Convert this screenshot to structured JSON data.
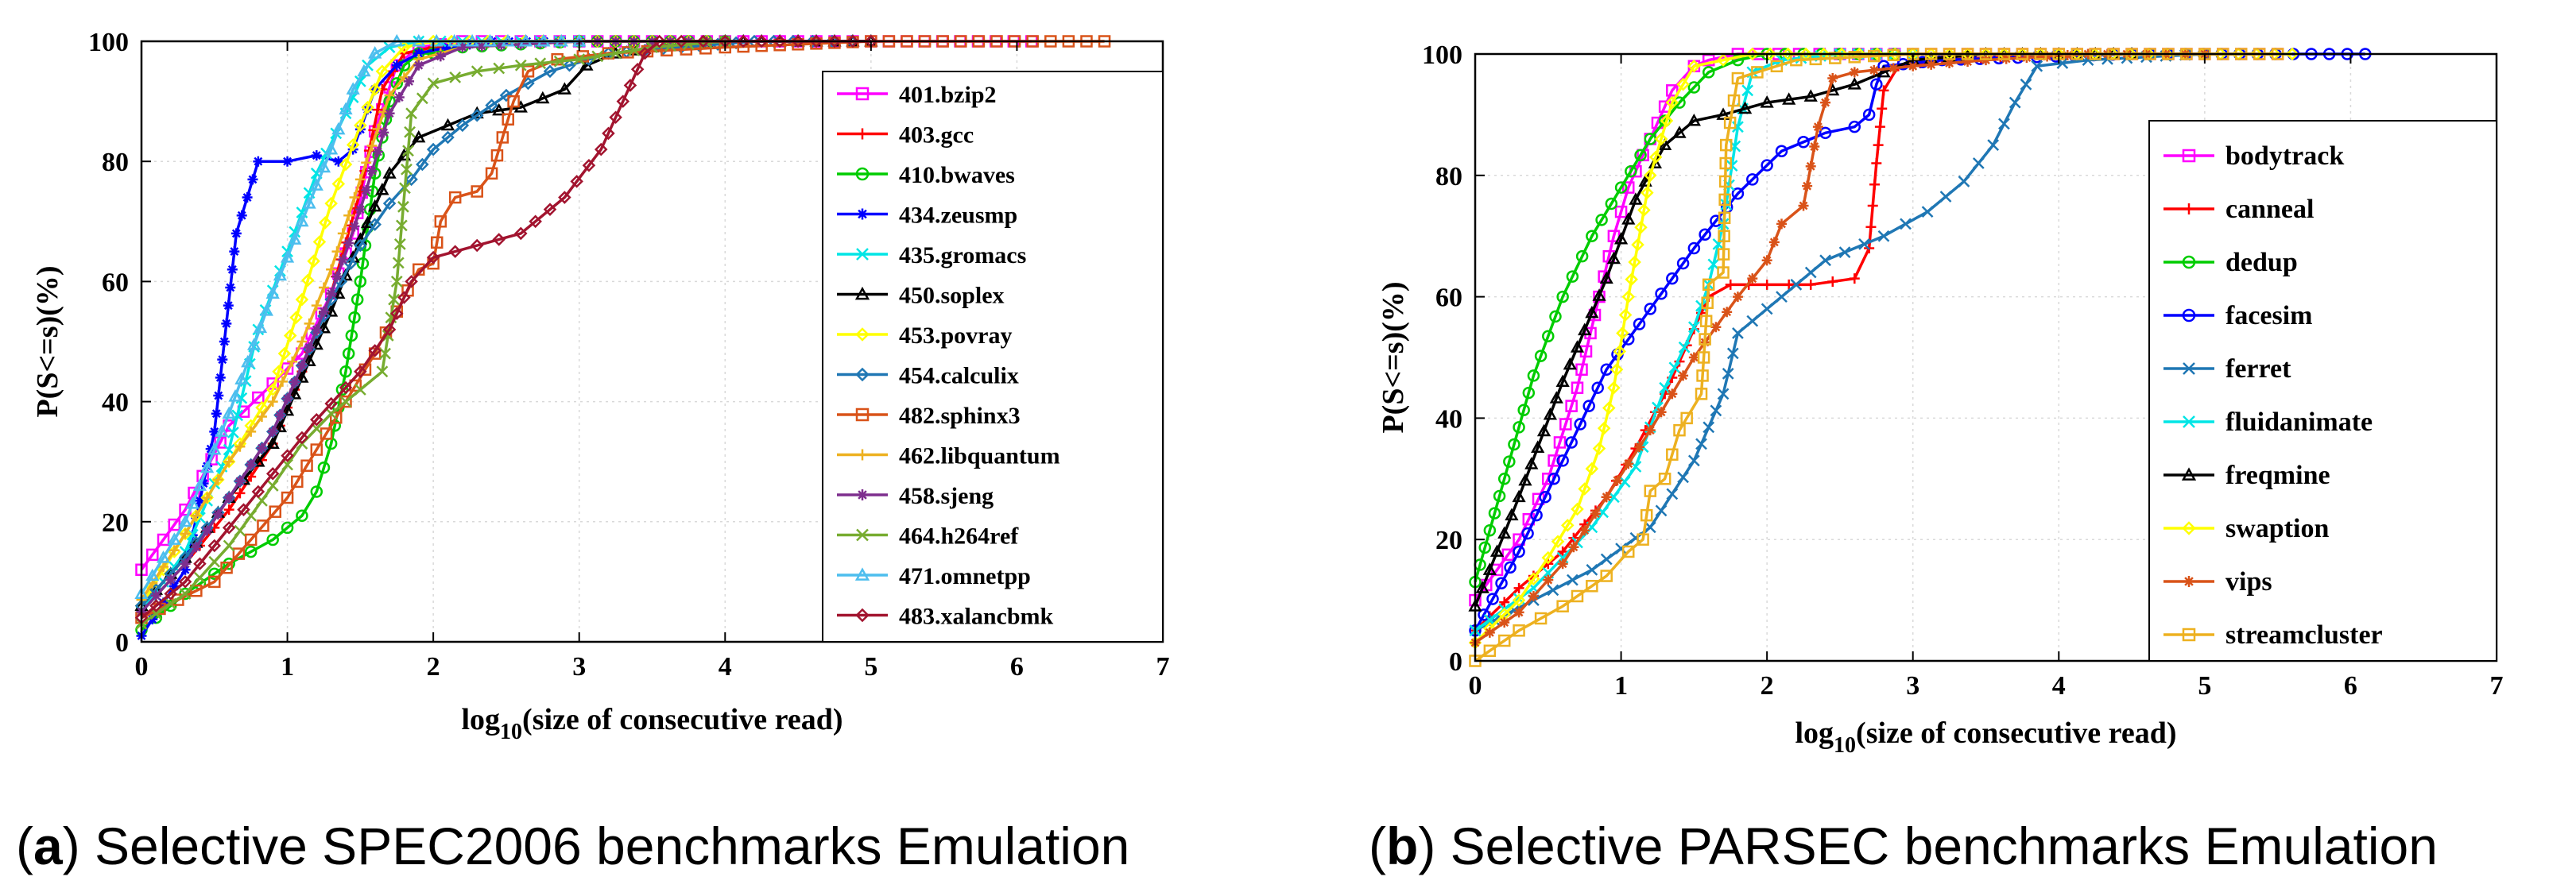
{
  "chart_data": [
    {
      "type": "line",
      "id": "a",
      "caption_label": "a",
      "caption_text": "Selective SPEC2006 benchmarks Emulation",
      "xlabel_base": "log",
      "xlabel_sub": "10",
      "xlabel_rest": "(size of consecutive read)",
      "ylabel": "P(S<=s)(%)",
      "xlim": [
        0,
        7
      ],
      "ylim": [
        0,
        100
      ],
      "xticks": [
        0,
        1,
        2,
        3,
        4,
        5,
        6,
        7
      ],
      "yticks": [
        0,
        20,
        40,
        60,
        80,
        100
      ],
      "grid": true,
      "legend_position": "right",
      "series": [
        {
          "name": "401.bzip2",
          "color": "#ff00ff",
          "marker": "square",
          "x": [
            0,
            0.3,
            0.6,
            0.9,
            1.1,
            1.3,
            1.45,
            1.6,
            1.75,
            1.9,
            2.2,
            3,
            4,
            5,
            6.1
          ],
          "y": [
            12,
            22,
            36,
            43,
            48,
            58,
            68,
            85,
            96,
            99,
            100,
            100,
            100,
            100,
            100
          ]
        },
        {
          "name": "403.gcc",
          "color": "#ff0000",
          "marker": "plus",
          "x": [
            0,
            0.3,
            0.6,
            0.9,
            1.1,
            1.3,
            1.5,
            1.65,
            1.8,
            2,
            2.5,
            3,
            4
          ],
          "y": [
            5,
            13,
            22,
            33,
            45,
            58,
            75,
            92,
            98,
            99,
            100,
            100,
            100
          ]
        },
        {
          "name": "410.bwaves",
          "color": "#00cc00",
          "marker": "circle",
          "x": [
            0,
            0.3,
            0.6,
            0.9,
            1,
            1.1,
            1.2,
            1.3,
            1.4,
            1.5,
            1.6,
            1.7,
            1.8,
            1.9,
            2,
            2.2,
            3,
            4
          ],
          "y": [
            2,
            8,
            13,
            17,
            19,
            21,
            25,
            33,
            45,
            60,
            78,
            90,
            96,
            98,
            98,
            99,
            100,
            100
          ]
        },
        {
          "name": "434.zeusmp",
          "color": "#0000ff",
          "marker": "star",
          "x": [
            0,
            0.3,
            0.5,
            0.65,
            0.8,
            1,
            1.2,
            1.35,
            1.45,
            1.6,
            1.75,
            1.9,
            2.1,
            2.4,
            3,
            4
          ],
          "y": [
            1,
            12,
            35,
            68,
            80,
            80,
            81,
            80,
            82,
            92,
            96,
            98,
            99,
            100,
            100,
            100
          ]
        },
        {
          "name": "435.gromacs",
          "color": "#00e5e5",
          "marker": "cross",
          "x": [
            0,
            0.3,
            0.6,
            0.8,
            1,
            1.2,
            1.4,
            1.55,
            1.7,
            1.9,
            2.2,
            3
          ],
          "y": [
            5,
            15,
            32,
            52,
            65,
            78,
            88,
            96,
            99,
            100,
            100,
            100
          ]
        },
        {
          "name": "450.soplex",
          "color": "#000000",
          "marker": "triangle",
          "x": [
            0,
            0.3,
            0.6,
            0.9,
            1.1,
            1.3,
            1.5,
            1.7,
            1.9,
            2.1,
            2.3,
            2.6,
            2.9,
            3.05,
            3.25,
            3.5,
            4,
            5
          ],
          "y": [
            6,
            14,
            24,
            33,
            44,
            55,
            67,
            78,
            84,
            86,
            88,
            89,
            92,
            96,
            98,
            99,
            100,
            100
          ]
        },
        {
          "name": "453.povray",
          "color": "#ffff00",
          "marker": "diamond",
          "x": [
            0,
            0.3,
            0.6,
            0.9,
            1.1,
            1.3,
            1.5,
            1.65,
            1.8,
            2,
            3,
            4
          ],
          "y": [
            6,
            18,
            30,
            42,
            57,
            73,
            86,
            95,
            99,
            100,
            100,
            100
          ]
        },
        {
          "name": "454.calculix",
          "color": "#1f77b4",
          "marker": "diamond",
          "x": [
            0,
            0.3,
            0.6,
            0.9,
            1.1,
            1.3,
            1.5,
            1.7,
            1.85,
            2,
            2.2,
            2.5,
            2.8,
            3.2,
            3.7,
            4.2,
            5
          ],
          "y": [
            6,
            14,
            24,
            35,
            46,
            57,
            66,
            73,
            77,
            82,
            86,
            91,
            95,
            98,
            99,
            100,
            100
          ]
        },
        {
          "name": "482.sphinx3",
          "color": "#d95319",
          "marker": "square",
          "x": [
            0,
            0.5,
            1,
            1.4,
            1.6,
            1.75,
            1.9,
            2,
            2.05,
            2.15,
            2.3,
            2.4,
            2.55,
            2.65,
            2.85,
            3.2,
            4,
            5,
            6.6
          ],
          "y": [
            4,
            10,
            24,
            40,
            48,
            55,
            62,
            63,
            70,
            74,
            75,
            78,
            90,
            95,
            97,
            98,
            99,
            100,
            100
          ]
        },
        {
          "name": "462.libquantum",
          "color": "#edb120",
          "marker": "plus",
          "x": [
            0,
            0.3,
            0.6,
            0.9,
            1.1,
            1.3,
            1.5,
            1.7,
            1.9,
            2.2,
            3,
            4
          ],
          "y": [
            7,
            18,
            30,
            40,
            50,
            62,
            77,
            91,
            97,
            99,
            100,
            100
          ]
        },
        {
          "name": "458.sjeng",
          "color": "#7e2f8e",
          "marker": "star",
          "x": [
            0,
            0.3,
            0.6,
            0.9,
            1.1,
            1.3,
            1.5,
            1.7,
            1.9,
            2.2,
            3,
            4
          ],
          "y": [
            5,
            13,
            24,
            35,
            46,
            58,
            72,
            88,
            96,
            99,
            100,
            100
          ]
        },
        {
          "name": "464.h264ref",
          "color": "#77ac30",
          "marker": "cross",
          "x": [
            0,
            0.3,
            0.6,
            0.9,
            1.1,
            1.3,
            1.5,
            1.65,
            1.75,
            1.85,
            2,
            2.3,
            2.6,
            3,
            3.5,
            4
          ],
          "y": [
            3,
            8,
            16,
            26,
            33,
            38,
            42,
            45,
            60,
            88,
            93,
            95,
            96,
            97,
            99,
            100
          ]
        },
        {
          "name": "471.omnetpp",
          "color": "#4dbeee",
          "marker": "triangle",
          "x": [
            0,
            0.3,
            0.6,
            0.9,
            1.1,
            1.3,
            1.45,
            1.6,
            1.75,
            1.9,
            3
          ],
          "y": [
            8,
            20,
            38,
            58,
            70,
            82,
            92,
            98,
            100,
            100,
            100
          ]
        },
        {
          "name": "483.xalancbmk",
          "color": "#a2142f",
          "marker": "diamond",
          "x": [
            0,
            0.3,
            0.6,
            0.9,
            1.2,
            1.5,
            1.7,
            1.85,
            2,
            2.3,
            2.6,
            2.9,
            3.15,
            3.3,
            3.45,
            3.55,
            4,
            5
          ],
          "y": [
            4,
            10,
            19,
            28,
            37,
            45,
            52,
            60,
            64,
            66,
            68,
            74,
            82,
            90,
            98,
            100,
            100,
            100
          ]
        }
      ]
    },
    {
      "type": "line",
      "id": "b",
      "caption_label": "b",
      "caption_text": "Selective PARSEC benchmarks Emulation",
      "xlabel_base": "log",
      "xlabel_sub": "10",
      "xlabel_rest": "(size of consecutive read)",
      "ylabel": "P(S<=s)(%)",
      "xlim": [
        0,
        7
      ],
      "ylim": [
        0,
        100
      ],
      "xticks": [
        0,
        1,
        2,
        3,
        4,
        5,
        6,
        7
      ],
      "yticks": [
        0,
        20,
        40,
        60,
        80,
        100
      ],
      "grid": true,
      "legend_position": "right",
      "series": [
        {
          "name": "bodytrack",
          "color": "#ff00ff",
          "marker": "square",
          "x": [
            0,
            0.3,
            0.5,
            0.7,
            0.85,
            0.95,
            1.05,
            1.2,
            1.35,
            1.5,
            1.6,
            1.8,
            2.5,
            4,
            5.5
          ],
          "y": [
            10,
            20,
            30,
            45,
            60,
            70,
            78,
            86,
            94,
            98,
            99,
            100,
            100,
            100,
            100
          ]
        },
        {
          "name": "canneal",
          "color": "#ff0000",
          "marker": "plus",
          "x": [
            0,
            0.3,
            0.6,
            0.9,
            1.1,
            1.3,
            1.45,
            1.6,
            1.75,
            2,
            2.3,
            2.6,
            2.7,
            2.75,
            2.8,
            2.9,
            3.2,
            4
          ],
          "y": [
            5,
            12,
            18,
            27,
            35,
            44,
            52,
            60,
            62,
            62,
            62,
            63,
            68,
            82,
            94,
            98,
            99,
            100
          ]
        },
        {
          "name": "dedup",
          "color": "#00cc00",
          "marker": "circle",
          "x": [
            0,
            0.2,
            0.4,
            0.6,
            0.8,
            1,
            1.2,
            1.4,
            1.6,
            1.8,
            2,
            3
          ],
          "y": [
            13,
            30,
            47,
            60,
            70,
            78,
            86,
            92,
            97,
            99,
            100,
            100
          ]
        },
        {
          "name": "facesim",
          "color": "#0000ff",
          "marker": "circle",
          "x": [
            0,
            0.3,
            0.6,
            0.9,
            1.2,
            1.5,
            1.8,
            2.1,
            2.4,
            2.6,
            2.7,
            2.75,
            2.8,
            3.2,
            4.5,
            6.1
          ],
          "y": [
            5,
            18,
            33,
            48,
            58,
            68,
            77,
            84,
            87,
            88,
            90,
            95,
            98,
            99,
            100,
            100
          ]
        },
        {
          "name": "ferret",
          "color": "#1f77b4",
          "marker": "cross",
          "x": [
            0,
            0.4,
            0.8,
            1.2,
            1.5,
            1.7,
            1.8,
            2.1,
            2.4,
            2.8,
            3.1,
            3.35,
            3.55,
            3.7,
            3.85,
            4.2,
            5
          ],
          "y": [
            5,
            10,
            15,
            22,
            33,
            44,
            54,
            60,
            66,
            70,
            74,
            79,
            85,
            92,
            98,
            99,
            100
          ]
        },
        {
          "name": "fluidanimate",
          "color": "#00e5e5",
          "marker": "cross",
          "x": [
            0,
            0.4,
            0.8,
            1.1,
            1.3,
            1.5,
            1.6,
            1.7,
            1.8,
            1.9,
            2.1,
            2.5,
            3
          ],
          "y": [
            5,
            12,
            22,
            32,
            45,
            55,
            62,
            72,
            88,
            97,
            99,
            100,
            100
          ]
        },
        {
          "name": "freqmine",
          "color": "#000000",
          "marker": "triangle",
          "x": [
            0,
            0.3,
            0.6,
            0.9,
            1.1,
            1.3,
            1.5,
            1.7,
            2,
            2.3,
            2.6,
            2.8,
            3,
            3.5,
            4.5
          ],
          "y": [
            9,
            27,
            46,
            63,
            76,
            85,
            89,
            90,
            92,
            93,
            95,
            97,
            99,
            100,
            100
          ]
        },
        {
          "name": "swaption",
          "color": "#ffff00",
          "marker": "diamond",
          "x": [
            0,
            0.3,
            0.5,
            0.7,
            0.85,
            0.95,
            1.05,
            1.2,
            1.35,
            1.5,
            1.7,
            1.9,
            3,
            4,
            5.6
          ],
          "y": [
            3,
            10,
            17,
            25,
            35,
            45,
            60,
            80,
            92,
            98,
            99,
            100,
            100,
            100,
            100
          ]
        },
        {
          "name": "vips",
          "color": "#d95319",
          "marker": "star",
          "x": [
            0,
            0.3,
            0.6,
            0.9,
            1.2,
            1.5,
            1.8,
            2,
            2.1,
            2.25,
            2.35,
            2.45,
            2.6,
            3,
            3.5,
            4.2,
            5
          ],
          "y": [
            3,
            8,
            16,
            27,
            38,
            50,
            60,
            66,
            72,
            75,
            88,
            96,
            97,
            98,
            99,
            100,
            100
          ]
        },
        {
          "name": "streamcluster",
          "color": "#edb120",
          "marker": "square",
          "x": [
            0,
            0.3,
            0.6,
            0.9,
            1.05,
            1.15,
            1.2,
            1.3,
            1.4,
            1.45,
            1.55,
            1.6,
            1.7,
            1.72,
            1.8,
            2.2,
            3,
            4,
            5.5
          ],
          "y": [
            0,
            5,
            9,
            14,
            18,
            20,
            28,
            30,
            38,
            40,
            44,
            62,
            64,
            85,
            96,
            99,
            100,
            100,
            100
          ]
        }
      ]
    }
  ]
}
